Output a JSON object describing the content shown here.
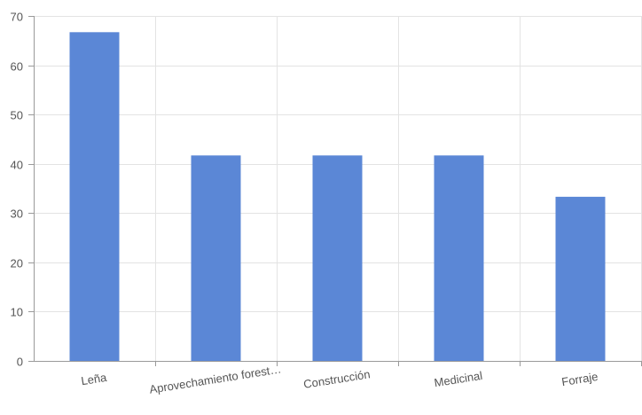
{
  "chart_data": {
    "type": "bar",
    "categories": [
      "Leña",
      "Aprovechamiento forest…",
      "Construcción",
      "Medicinal",
      "Forraje"
    ],
    "values": [
      66.7,
      41.7,
      41.7,
      41.7,
      33.3
    ],
    "ylim": [
      0,
      70
    ],
    "yticks": [
      0,
      10,
      20,
      30,
      40,
      50,
      60,
      70
    ],
    "grid": true,
    "legend": "none",
    "bar_color": "#5b87d6",
    "title": "",
    "xlabel": "",
    "ylabel": ""
  }
}
